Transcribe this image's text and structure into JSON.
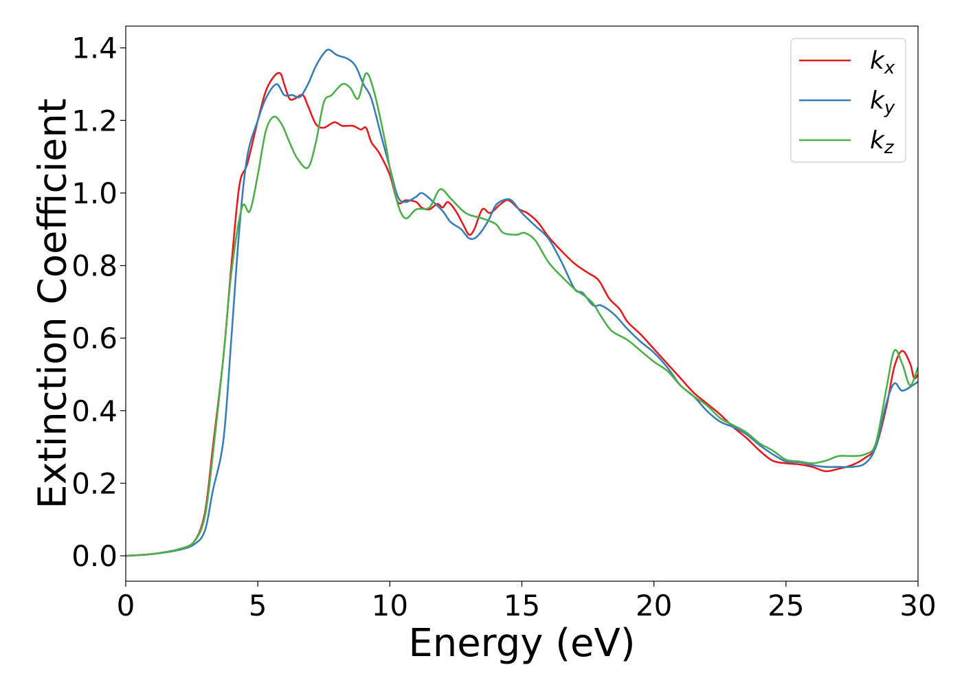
{
  "chart_data": {
    "type": "line",
    "title": "",
    "xlabel": "Energy (eV)",
    "ylabel": "Extinction Coefficient",
    "xlim": [
      0,
      30
    ],
    "ylim": [
      -0.07,
      1.46
    ],
    "xticks": [
      0,
      5,
      10,
      15,
      20,
      25,
      30
    ],
    "xtick_labels": [
      "0",
      "5",
      "10",
      "15",
      "20",
      "25",
      "30"
    ],
    "yticks": [
      0.0,
      0.2,
      0.4,
      0.6,
      0.8,
      1.0,
      1.2,
      1.4
    ],
    "ytick_labels": [
      "0.0",
      "0.2",
      "0.4",
      "0.6",
      "0.8",
      "1.0",
      "1.2",
      "1.4"
    ],
    "grid": false,
    "legend_position": "top-right",
    "series": [
      {
        "name": "kx",
        "legend_base": "k",
        "legend_sub": "x",
        "color": "#e41a1c",
        "points": [
          [
            0,
            0
          ],
          [
            1,
            0.005
          ],
          [
            2,
            0.018
          ],
          [
            2.6,
            0.04
          ],
          [
            3,
            0.12
          ],
          [
            3.3,
            0.3
          ],
          [
            3.7,
            0.55
          ],
          [
            4,
            0.8
          ],
          [
            4.3,
            1.02
          ],
          [
            4.6,
            1.08
          ],
          [
            5,
            1.2
          ],
          [
            5.3,
            1.28
          ],
          [
            5.6,
            1.32
          ],
          [
            5.85,
            1.33
          ],
          [
            6,
            1.3
          ],
          [
            6.2,
            1.26
          ],
          [
            6.4,
            1.26
          ],
          [
            6.7,
            1.27
          ],
          [
            6.9,
            1.24
          ],
          [
            7.2,
            1.19
          ],
          [
            7.5,
            1.18
          ],
          [
            7.9,
            1.195
          ],
          [
            8.2,
            1.185
          ],
          [
            8.6,
            1.185
          ],
          [
            8.9,
            1.175
          ],
          [
            9.1,
            1.18
          ],
          [
            9.3,
            1.14
          ],
          [
            9.6,
            1.11
          ],
          [
            10,
            1.05
          ],
          [
            10.3,
            0.975
          ],
          [
            10.6,
            0.98
          ],
          [
            11,
            0.975
          ],
          [
            11.2,
            0.96
          ],
          [
            11.5,
            0.955
          ],
          [
            11.8,
            0.97
          ],
          [
            12,
            0.96
          ],
          [
            12.2,
            0.975
          ],
          [
            12.5,
            0.95
          ],
          [
            12.8,
            0.91
          ],
          [
            13,
            0.885
          ],
          [
            13.2,
            0.9
          ],
          [
            13.5,
            0.955
          ],
          [
            13.8,
            0.945
          ],
          [
            14.2,
            0.97
          ],
          [
            14.5,
            0.98
          ],
          [
            14.9,
            0.955
          ],
          [
            15.2,
            0.945
          ],
          [
            15.6,
            0.92
          ],
          [
            16,
            0.88
          ],
          [
            16.5,
            0.84
          ],
          [
            17,
            0.805
          ],
          [
            17.5,
            0.78
          ],
          [
            17.9,
            0.76
          ],
          [
            18.3,
            0.71
          ],
          [
            18.7,
            0.68
          ],
          [
            19,
            0.645
          ],
          [
            19.5,
            0.61
          ],
          [
            20,
            0.57
          ],
          [
            20.5,
            0.53
          ],
          [
            21,
            0.49
          ],
          [
            21.5,
            0.45
          ],
          [
            22,
            0.42
          ],
          [
            22.5,
            0.39
          ],
          [
            23,
            0.355
          ],
          [
            23.5,
            0.325
          ],
          [
            24,
            0.29
          ],
          [
            24.5,
            0.262
          ],
          [
            25,
            0.255
          ],
          [
            25.5,
            0.252
          ],
          [
            26,
            0.245
          ],
          [
            26.5,
            0.233
          ],
          [
            27,
            0.24
          ],
          [
            27.5,
            0.25
          ],
          [
            28,
            0.27
          ],
          [
            28.4,
            0.3
          ],
          [
            28.8,
            0.41
          ],
          [
            29.1,
            0.52
          ],
          [
            29.4,
            0.565
          ],
          [
            29.7,
            0.53
          ],
          [
            29.85,
            0.49
          ],
          [
            30,
            0.5
          ]
        ]
      },
      {
        "name": "ky",
        "legend_base": "k",
        "legend_sub": "y",
        "color": "#377eb8",
        "points": [
          [
            0,
            0
          ],
          [
            1,
            0.005
          ],
          [
            2,
            0.016
          ],
          [
            2.6,
            0.032
          ],
          [
            3,
            0.07
          ],
          [
            3.3,
            0.18
          ],
          [
            3.7,
            0.32
          ],
          [
            4,
            0.6
          ],
          [
            4.3,
            0.9
          ],
          [
            4.6,
            1.1
          ],
          [
            5,
            1.2
          ],
          [
            5.3,
            1.26
          ],
          [
            5.7,
            1.3
          ],
          [
            6,
            1.27
          ],
          [
            6.3,
            1.27
          ],
          [
            6.6,
            1.265
          ],
          [
            6.9,
            1.3
          ],
          [
            7.2,
            1.35
          ],
          [
            7.5,
            1.385
          ],
          [
            7.7,
            1.395
          ],
          [
            8,
            1.38
          ],
          [
            8.4,
            1.37
          ],
          [
            8.7,
            1.35
          ],
          [
            9,
            1.3
          ],
          [
            9.3,
            1.26
          ],
          [
            9.7,
            1.15
          ],
          [
            10,
            1.07
          ],
          [
            10.3,
            0.99
          ],
          [
            10.6,
            0.975
          ],
          [
            11,
            0.99
          ],
          [
            11.2,
            1.0
          ],
          [
            11.5,
            0.985
          ],
          [
            12,
            0.95
          ],
          [
            12.3,
            0.92
          ],
          [
            12.7,
            0.9
          ],
          [
            13,
            0.875
          ],
          [
            13.3,
            0.88
          ],
          [
            13.7,
            0.92
          ],
          [
            14,
            0.965
          ],
          [
            14.3,
            0.98
          ],
          [
            14.6,
            0.98
          ],
          [
            15,
            0.945
          ],
          [
            15.5,
            0.91
          ],
          [
            16,
            0.875
          ],
          [
            16.5,
            0.81
          ],
          [
            17,
            0.735
          ],
          [
            17.3,
            0.725
          ],
          [
            17.7,
            0.69
          ],
          [
            18,
            0.69
          ],
          [
            18.5,
            0.665
          ],
          [
            19,
            0.625
          ],
          [
            19.5,
            0.59
          ],
          [
            20,
            0.56
          ],
          [
            20.5,
            0.52
          ],
          [
            21,
            0.47
          ],
          [
            21.5,
            0.44
          ],
          [
            22,
            0.4
          ],
          [
            22.5,
            0.37
          ],
          [
            23,
            0.355
          ],
          [
            23.5,
            0.335
          ],
          [
            24,
            0.305
          ],
          [
            24.5,
            0.28
          ],
          [
            25,
            0.26
          ],
          [
            25.5,
            0.258
          ],
          [
            26,
            0.25
          ],
          [
            26.5,
            0.245
          ],
          [
            27,
            0.245
          ],
          [
            27.5,
            0.245
          ],
          [
            28,
            0.255
          ],
          [
            28.4,
            0.3
          ],
          [
            28.8,
            0.42
          ],
          [
            29.1,
            0.475
          ],
          [
            29.4,
            0.455
          ],
          [
            29.8,
            0.47
          ],
          [
            30,
            0.48
          ]
        ]
      },
      {
        "name": "kz",
        "legend_base": "k",
        "legend_sub": "z",
        "color": "#4daf4a",
        "points": [
          [
            0,
            0
          ],
          [
            1,
            0.005
          ],
          [
            2,
            0.018
          ],
          [
            2.6,
            0.04
          ],
          [
            3,
            0.11
          ],
          [
            3.3,
            0.28
          ],
          [
            3.7,
            0.55
          ],
          [
            4,
            0.78
          ],
          [
            4.4,
            0.96
          ],
          [
            4.7,
            0.95
          ],
          [
            5,
            1.05
          ],
          [
            5.3,
            1.17
          ],
          [
            5.6,
            1.21
          ],
          [
            5.9,
            1.19
          ],
          [
            6.2,
            1.14
          ],
          [
            6.5,
            1.095
          ],
          [
            6.9,
            1.07
          ],
          [
            7.2,
            1.14
          ],
          [
            7.5,
            1.25
          ],
          [
            7.8,
            1.27
          ],
          [
            8.2,
            1.3
          ],
          [
            8.5,
            1.29
          ],
          [
            8.8,
            1.26
          ],
          [
            9.1,
            1.33
          ],
          [
            9.4,
            1.28
          ],
          [
            9.8,
            1.15
          ],
          [
            10,
            1.07
          ],
          [
            10.3,
            0.97
          ],
          [
            10.6,
            0.93
          ],
          [
            11,
            0.955
          ],
          [
            11.5,
            0.96
          ],
          [
            11.9,
            1.01
          ],
          [
            12.3,
            0.985
          ],
          [
            12.7,
            0.955
          ],
          [
            13,
            0.94
          ],
          [
            13.5,
            0.93
          ],
          [
            14,
            0.915
          ],
          [
            14.3,
            0.89
          ],
          [
            14.8,
            0.885
          ],
          [
            15.1,
            0.89
          ],
          [
            15.5,
            0.87
          ],
          [
            16,
            0.81
          ],
          [
            16.5,
            0.77
          ],
          [
            17,
            0.735
          ],
          [
            17.4,
            0.715
          ],
          [
            17.7,
            0.695
          ],
          [
            18,
            0.66
          ],
          [
            18.4,
            0.62
          ],
          [
            19,
            0.595
          ],
          [
            19.5,
            0.565
          ],
          [
            20,
            0.535
          ],
          [
            20.5,
            0.51
          ],
          [
            21,
            0.47
          ],
          [
            21.5,
            0.44
          ],
          [
            22,
            0.415
          ],
          [
            22.5,
            0.38
          ],
          [
            23,
            0.36
          ],
          [
            23.5,
            0.34
          ],
          [
            24,
            0.31
          ],
          [
            24.5,
            0.29
          ],
          [
            25,
            0.265
          ],
          [
            25.5,
            0.26
          ],
          [
            26,
            0.255
          ],
          [
            26.5,
            0.262
          ],
          [
            27,
            0.275
          ],
          [
            27.5,
            0.275
          ],
          [
            28,
            0.28
          ],
          [
            28.4,
            0.31
          ],
          [
            28.8,
            0.46
          ],
          [
            29.1,
            0.565
          ],
          [
            29.4,
            0.53
          ],
          [
            29.7,
            0.47
          ],
          [
            30,
            0.52
          ]
        ]
      }
    ]
  }
}
